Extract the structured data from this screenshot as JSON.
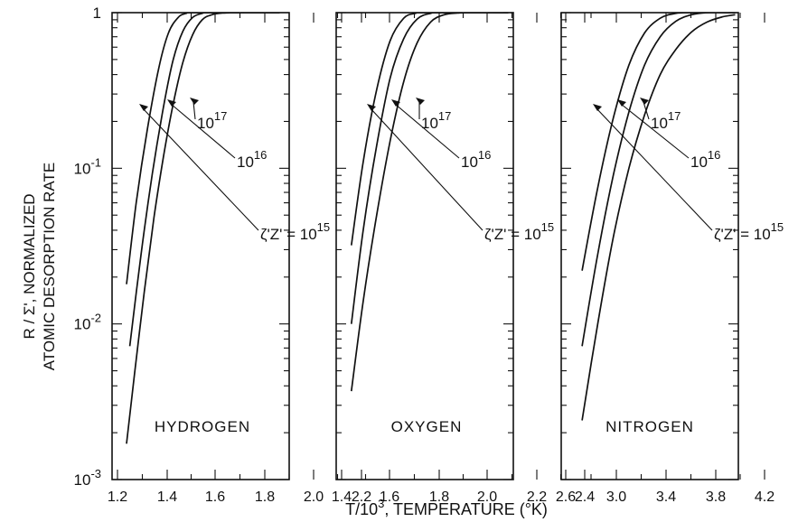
{
  "figure": {
    "ylabel_line1": "R / Σ', NORMALIZED",
    "ylabel_line2": "ATOMIC DESORPTION RATE",
    "xlabel_prefix": "T/10",
    "xlabel_exp": "3",
    "xlabel_suffix": ", TEMPERATURE (°K)"
  },
  "chart_data": [
    {
      "type": "line",
      "panel_label": "HYDROGEN",
      "yscale": "log",
      "ylim": [
        0.001,
        1
      ],
      "y_ticks": [
        {
          "base": "10",
          "exp": "-3",
          "value": 0.001
        },
        {
          "base": "10",
          "exp": "-2",
          "value": 0.01
        },
        {
          "base": "10",
          "exp": "-1",
          "value": 0.1
        },
        {
          "base": "",
          "exp": "",
          "label": "1",
          "value": 1
        }
      ],
      "xlim": [
        1.2,
        2.3
      ],
      "x_ticks": [
        "1.2",
        "1.4",
        "1.6",
        "1.8",
        "2.0",
        "2.2"
      ],
      "series": [
        {
          "label_base": "ζ'Z' = 10",
          "label_exp": "15",
          "points": [
            [
              1.29,
              0.0017
            ],
            [
              1.34,
              0.0048
            ],
            [
              1.4,
              0.016
            ],
            [
              1.46,
              0.048
            ],
            [
              1.52,
              0.12
            ],
            [
              1.58,
              0.26
            ],
            [
              1.64,
              0.48
            ],
            [
              1.7,
              0.72
            ],
            [
              1.76,
              0.9
            ],
            [
              1.82,
              0.97
            ],
            [
              1.89,
              0.995
            ],
            [
              2.0,
              1.0
            ],
            [
              2.24,
              1.0
            ]
          ]
        },
        {
          "label_base": "10",
          "label_exp": "16",
          "points": [
            [
              1.31,
              0.0072
            ],
            [
              1.38,
              0.028
            ],
            [
              1.45,
              0.092
            ],
            [
              1.52,
              0.25
            ],
            [
              1.58,
              0.5
            ],
            [
              1.64,
              0.76
            ],
            [
              1.7,
              0.93
            ],
            [
              1.76,
              0.99
            ],
            [
              1.82,
              1.0
            ],
            [
              2.24,
              1.0
            ]
          ]
        },
        {
          "label_base": "10",
          "label_exp": "17",
          "points": [
            [
              1.29,
              0.018
            ],
            [
              1.35,
              0.06
            ],
            [
              1.42,
              0.18
            ],
            [
              1.49,
              0.44
            ],
            [
              1.55,
              0.74
            ],
            [
              1.61,
              0.93
            ],
            [
              1.66,
              0.99
            ],
            [
              1.72,
              1.0
            ],
            [
              2.24,
              1.0
            ]
          ]
        }
      ]
    },
    {
      "type": "line",
      "panel_label": "OXYGEN",
      "yscale": "log",
      "ylim": [
        0.001,
        1
      ],
      "xlim": [
        1.4,
        2.45
      ],
      "x_ticks": [
        "1.4",
        "1.6",
        "1.8",
        "2.0",
        "2.2",
        "2.4"
      ],
      "series": [
        {
          "label_base": "ζ'Z' = 10",
          "label_exp": "15",
          "points": [
            [
              1.49,
              0.0037
            ],
            [
              1.56,
              0.014
            ],
            [
              1.64,
              0.05
            ],
            [
              1.72,
              0.15
            ],
            [
              1.8,
              0.36
            ],
            [
              1.88,
              0.64
            ],
            [
              1.96,
              0.87
            ],
            [
              2.04,
              0.97
            ],
            [
              2.12,
              0.995
            ],
            [
              2.22,
              1.0
            ],
            [
              2.42,
              1.0
            ]
          ]
        },
        {
          "label_base": "10",
          "label_exp": "16",
          "points": [
            [
              1.49,
              0.01
            ],
            [
              1.56,
              0.04
            ],
            [
              1.64,
              0.14
            ],
            [
              1.72,
              0.38
            ],
            [
              1.8,
              0.68
            ],
            [
              1.88,
              0.91
            ],
            [
              1.96,
              0.99
            ],
            [
              2.02,
              1.0
            ],
            [
              2.42,
              1.0
            ]
          ]
        },
        {
          "label_base": "10",
          "label_exp": "17",
          "points": [
            [
              1.49,
              0.032
            ],
            [
              1.56,
              0.11
            ],
            [
              1.64,
              0.32
            ],
            [
              1.72,
              0.66
            ],
            [
              1.8,
              0.92
            ],
            [
              1.87,
              0.99
            ],
            [
              1.93,
              1.0
            ],
            [
              2.42,
              1.0
            ]
          ]
        }
      ]
    },
    {
      "type": "line",
      "panel_label": "NITROGEN",
      "yscale": "log",
      "ylim": [
        0.001,
        1
      ],
      "xlim": [
        2.55,
        4.25
      ],
      "x_ticks": [
        "2.6",
        "3.0",
        "3.4",
        "3.8",
        "4.2"
      ],
      "series": [
        {
          "label_base": "ζ'Z' = 10",
          "label_exp": "15",
          "points": [
            [
              2.75,
              0.0024
            ],
            [
              2.9,
              0.01
            ],
            [
              3.05,
              0.036
            ],
            [
              3.2,
              0.1
            ],
            [
              3.35,
              0.22
            ],
            [
              3.5,
              0.4
            ],
            [
              3.65,
              0.58
            ],
            [
              3.8,
              0.75
            ],
            [
              3.95,
              0.87
            ],
            [
              4.1,
              0.94
            ],
            [
              4.22,
              0.97
            ]
          ]
        },
        {
          "label_base": "10",
          "label_exp": "16",
          "points": [
            [
              2.75,
              0.0072
            ],
            [
              2.9,
              0.028
            ],
            [
              3.05,
              0.09
            ],
            [
              3.2,
              0.23
            ],
            [
              3.35,
              0.46
            ],
            [
              3.5,
              0.7
            ],
            [
              3.65,
              0.88
            ],
            [
              3.8,
              0.97
            ],
            [
              3.95,
              1.0
            ],
            [
              4.22,
              1.0
            ]
          ]
        },
        {
          "label_base": "10",
          "label_exp": "17",
          "points": [
            [
              2.75,
              0.022
            ],
            [
              2.9,
              0.075
            ],
            [
              3.05,
              0.21
            ],
            [
              3.2,
              0.46
            ],
            [
              3.35,
              0.74
            ],
            [
              3.5,
              0.92
            ],
            [
              3.65,
              0.99
            ],
            [
              3.8,
              1.0
            ],
            [
              4.22,
              1.0
            ]
          ]
        }
      ]
    }
  ]
}
